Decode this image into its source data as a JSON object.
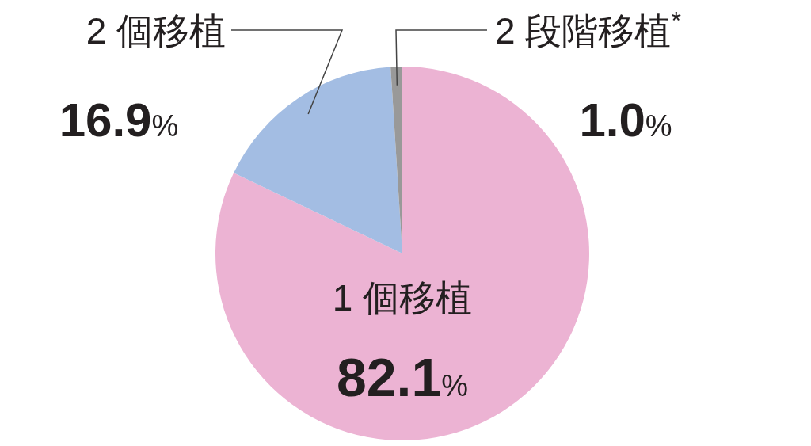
{
  "chart_data": {
    "type": "pie",
    "categories": [
      "1 個移植",
      "2 個移植",
      "2 段階移植$^{*}$"
    ],
    "values": [
      82.1,
      16.9,
      1.0
    ],
    "colors": [
      "#ecb3d3",
      "#a3bde3",
      "#999999"
    ],
    "value_labels": [
      "82.1%",
      "16.9%",
      "1.0%"
    ]
  }
}
